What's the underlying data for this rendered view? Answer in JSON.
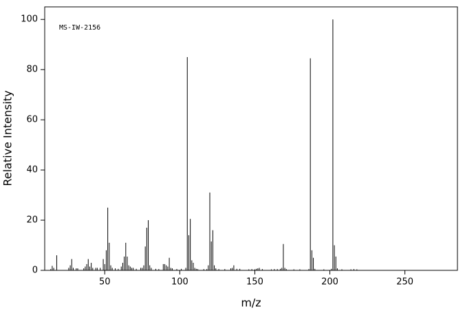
{
  "chart_data": {
    "type": "stem",
    "annotation": "MS-IW-2156",
    "xlabel": "m/z",
    "ylabel": "Relative Intensity",
    "x": [
      14,
      15,
      16,
      18,
      26,
      27,
      28,
      29,
      31,
      32,
      36,
      37,
      38,
      39,
      40,
      41,
      42,
      44,
      45,
      47,
      49,
      50,
      51,
      52,
      53,
      54,
      55,
      57,
      59,
      61,
      62,
      63,
      64,
      65,
      66,
      67,
      68,
      69,
      71,
      74,
      75,
      76,
      77,
      78,
      79,
      80,
      81,
      84,
      86,
      89,
      90,
      91,
      92,
      93,
      94,
      95,
      98,
      101,
      104,
      105,
      106,
      107,
      108,
      109,
      110,
      111,
      112,
      116,
      118,
      119,
      120,
      121,
      122,
      123,
      124,
      126,
      130,
      134,
      135,
      136,
      138,
      140,
      146,
      148,
      150,
      151,
      152,
      153,
      155,
      161,
      163,
      165,
      167,
      168,
      169,
      170,
      171,
      176,
      180,
      186,
      187,
      188,
      189,
      190,
      196,
      201,
      202,
      203,
      204,
      205,
      208,
      214,
      216,
      218
    ],
    "values": [
      0.5,
      1.8,
      1,
      6,
      1,
      2,
      4.5,
      1,
      0.8,
      0.8,
      0.8,
      1.5,
      2.5,
      4.5,
      1.5,
      3,
      1,
      1,
      1,
      1,
      4.5,
      2.5,
      8,
      25,
      11,
      2,
      1,
      0.8,
      0.6,
      1.5,
      3,
      5.5,
      11,
      5.5,
      2,
      1.5,
      1,
      1,
      0.6,
      1,
      1,
      2,
      9.5,
      17,
      20,
      2,
      1,
      0.6,
      0.5,
      2.5,
      2.5,
      2,
      1.5,
      5,
      1,
      0.8,
      0.5,
      0.6,
      1,
      85,
      14,
      20.5,
      4,
      3,
      1,
      0.6,
      0.5,
      0.5,
      0.5,
      2,
      31,
      11.5,
      16,
      2,
      0.8,
      0.5,
      0.5,
      0.8,
      1,
      2,
      0.6,
      0.6,
      0.4,
      0.5,
      0.4,
      0.6,
      0.8,
      1,
      0.5,
      0.4,
      0.5,
      0.5,
      0.6,
      1,
      10.5,
      1,
      0.5,
      0.4,
      0.4,
      0.5,
      84.5,
      8,
      5,
      0.6,
      0.4,
      0.6,
      100,
      10,
      5.5,
      0.8,
      0.4,
      0.4,
      0.5,
      0.4
    ],
    "color": "#000000",
    "xlim": [
      10,
      285
    ],
    "ylim": [
      0,
      105
    ],
    "xticks": [
      50,
      100,
      150,
      200,
      250
    ],
    "yticks": [
      0,
      20,
      40,
      60,
      80,
      100
    ]
  }
}
